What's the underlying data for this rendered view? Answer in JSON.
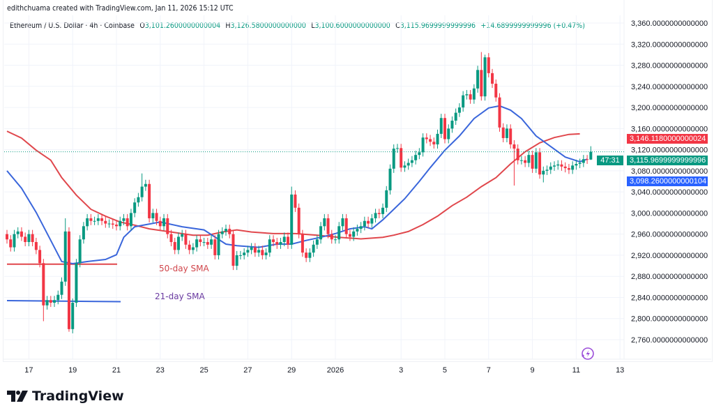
{
  "credit": "edithchuama created with TradingView.com, Jan 11, 2026 15:12 UTC",
  "legend": {
    "symbol": "Ethereum / U.S. Dollar · 4h · Coinbase",
    "o_label": "O",
    "o": "3,101.2600000000004",
    "h_label": "H",
    "h": "3,126.5800000000000",
    "l_label": "L",
    "l": "3,100.6000000000000",
    "c_label": "C",
    "c": "3,115.9699999999996",
    "change": "+14.6899999999996 (+0.47%)"
  },
  "badges": {
    "sma50": "3,146.1180000000024",
    "price": "3,115.9699999999996",
    "countdown": "47:31",
    "sma21": "3,098.2600000000104"
  },
  "annotations": {
    "sma50_label": "50-day SMA",
    "sma21_label": "21-day SMA"
  },
  "logo_text": "TradingView",
  "colors": {
    "up": "#089981",
    "down": "#f23645",
    "sma50": "#e0474c",
    "sma21": "#3a66db",
    "sma21_label": "#6a3aa0",
    "sma50_label": "#d0454b",
    "lightning": "#9c4fd9"
  },
  "icons": {
    "logo": "tradingview-logo",
    "alert": "lightning-icon"
  },
  "chart_data": {
    "type": "candlestick",
    "interval": "4h",
    "start": "2025-12-16T00:00",
    "yticks": [
      "3,360.0000000000000",
      "3,320.0000000000000",
      "3,280.0000000000000",
      "3,240.0000000000000",
      "3,200.0000000000000",
      "3,160.0000000000000",
      "3,120.0000000000000",
      "3,080.0000000000000",
      "3,040.0000000000000",
      "3,000.0000000000000",
      "2,960.0000000000000",
      "2,920.0000000000000",
      "2,880.0000000000000",
      "2,840.0000000000000",
      "2,800.0000000000000",
      "2,760.0000000000000"
    ],
    "ylim": [
      2760,
      3360
    ],
    "xticks": [
      {
        "label": "17",
        "date": "2025-12-17T00:00"
      },
      {
        "label": "19",
        "date": "2025-12-19T00:00"
      },
      {
        "label": "21",
        "date": "2025-12-21T00:00"
      },
      {
        "label": "23",
        "date": "2025-12-23T00:00"
      },
      {
        "label": "25",
        "date": "2025-12-25T00:00"
      },
      {
        "label": "27",
        "date": "2025-12-27T00:00"
      },
      {
        "label": "29",
        "date": "2025-12-29T00:00"
      },
      {
        "label": "2026",
        "date": "2025-12-31T00:00"
      },
      {
        "label": "3",
        "date": "2026-01-03T00:00"
      },
      {
        "label": "5",
        "date": "2026-01-05T00:00"
      },
      {
        "label": "7",
        "date": "2026-01-07T00:00"
      },
      {
        "label": "9",
        "date": "2026-01-09T00:00"
      },
      {
        "label": "11",
        "date": "2026-01-11T00:00"
      },
      {
        "label": "13",
        "date": "2026-01-13T00:00"
      }
    ],
    "first_open": 2960,
    "closes": [
      2950,
      2935,
      2960,
      2965,
      2955,
      2945,
      2960,
      2945,
      2930,
      2905,
      2825,
      2835,
      2830,
      2835,
      2845,
      2870,
      2965,
      2780,
      2830,
      2905,
      2950,
      2975,
      2990,
      2985,
      2985,
      2990,
      2985,
      2980,
      2980,
      2978,
      2975,
      2985,
      2990,
      2975,
      3000,
      3020,
      3030,
      3050,
      3055,
      2990,
      3000,
      2985,
      2975,
      2990,
      2960,
      2945,
      2930,
      2955,
      2960,
      2940,
      2930,
      2935,
      2950,
      2945,
      2945,
      2940,
      2950,
      2920,
      2960,
      2965,
      2970,
      2960,
      2900,
      2920,
      2920,
      2925,
      2930,
      2935,
      2925,
      2930,
      2920,
      2925,
      2950,
      2945,
      2940,
      2945,
      2955,
      2940,
      3035,
      3010,
      2960,
      2925,
      2915,
      2925,
      2940,
      2950,
      2975,
      2990,
      2960,
      2950,
      2950,
      2975,
      2990,
      2960,
      2955,
      2965,
      2970,
      2975,
      2985,
      2980,
      2990,
      3000,
      2998,
      3010,
      3043,
      3084,
      3122,
      3123,
      3086,
      3090,
      3095,
      3100,
      3110,
      3115,
      3143,
      3140,
      3135,
      3130,
      3150,
      3180,
      3140,
      3160,
      3175,
      3190,
      3200,
      3223,
      3225,
      3215,
      3236,
      3271,
      3221,
      3295,
      3265,
      3245,
      3219,
      3162,
      3142,
      3160,
      3130,
      3122,
      3100,
      3100,
      3095,
      3110,
      3084,
      3115,
      3073,
      3080,
      3082,
      3088,
      3090,
      3092,
      3088,
      3085,
      3082,
      3090,
      3093,
      3095,
      3102,
      3101,
      3115.97
    ],
    "notable_wicks": [
      {
        "bar": 10,
        "low": 2795
      },
      {
        "bar": 16,
        "high": 2990
      },
      {
        "bar": 17,
        "low": 2775
      },
      {
        "bar": 37,
        "high": 3075
      },
      {
        "bar": 78,
        "high": 3050
      },
      {
        "bar": 130,
        "high": 3305
      },
      {
        "bar": 131,
        "high": 3300
      },
      {
        "bar": 139,
        "low": 3052
      },
      {
        "bar": 147,
        "low": 3058
      },
      {
        "bar": 160,
        "open": 3101.26,
        "high": 3126.58,
        "low": 3100.6
      }
    ],
    "sma_50": [
      [
        "2025-12-16T00:00",
        3155
      ],
      [
        "2025-12-16T16:00",
        3142
      ],
      [
        "2025-12-17T08:00",
        3119
      ],
      [
        "2025-12-18T00:00",
        3100
      ],
      [
        "2025-12-18T12:00",
        3067
      ],
      [
        "2025-12-19T04:00",
        3034
      ],
      [
        "2025-12-19T20:00",
        3007
      ],
      [
        "2025-12-20T12:00",
        2994
      ],
      [
        "2025-12-21T04:00",
        2983
      ],
      [
        "2025-12-21T20:00",
        2977
      ],
      [
        "2025-12-22T12:00",
        2970
      ],
      [
        "2025-12-23T12:00",
        2964
      ],
      [
        "2025-12-24T12:00",
        2958
      ],
      [
        "2025-12-25T04:00",
        2958
      ],
      [
        "2025-12-25T20:00",
        2964
      ],
      [
        "2025-12-26T12:00",
        2968
      ],
      [
        "2025-12-27T04:00",
        2964
      ],
      [
        "2025-12-28T04:00",
        2961
      ],
      [
        "2025-12-29T04:00",
        2961
      ],
      [
        "2025-12-30T04:00",
        2958
      ],
      [
        "2025-12-31T04:00",
        2954
      ],
      [
        "2026-01-01T04:00",
        2951
      ],
      [
        "2026-01-02T04:00",
        2954
      ],
      [
        "2026-01-02T16:00",
        2958
      ],
      [
        "2026-01-03T08:00",
        2965
      ],
      [
        "2026-01-04T00:00",
        2978
      ],
      [
        "2026-01-04T16:00",
        2994
      ],
      [
        "2026-01-05T08:00",
        3014
      ],
      [
        "2026-01-06T00:00",
        3030
      ],
      [
        "2026-01-06T16:00",
        3050
      ],
      [
        "2026-01-07T08:00",
        3067
      ],
      [
        "2026-01-08T00:00",
        3093
      ],
      [
        "2026-01-08T16:00",
        3116
      ],
      [
        "2026-01-09T08:00",
        3133
      ],
      [
        "2026-01-10T00:00",
        3143
      ],
      [
        "2026-01-10T16:00",
        3149
      ],
      [
        "2026-01-11T04:00",
        3150
      ],
      [
        "2026-01-11T20:00",
        3149
      ],
      [
        "2026-01-12T08:00",
        3146
      ]
    ],
    "sma_21": [
      [
        "2025-12-16T00:00",
        3080
      ],
      [
        "2025-12-16T16:00",
        3047
      ],
      [
        "2025-12-17T08:00",
        3001
      ],
      [
        "2025-12-18T00:00",
        2948
      ],
      [
        "2025-12-18T12:00",
        2908
      ],
      [
        "2025-12-19T00:00",
        2904
      ],
      [
        "2025-12-19T16:00",
        2908
      ],
      [
        "2025-12-20T12:00",
        2912
      ],
      [
        "2025-12-21T00:00",
        2921
      ],
      [
        "2025-12-21T08:00",
        2954
      ],
      [
        "2025-12-21T20:00",
        2974
      ],
      [
        "2025-12-23T00:00",
        2983
      ],
      [
        "2025-12-24T00:00",
        2974
      ],
      [
        "2025-12-25T00:00",
        2968
      ],
      [
        "2025-12-26T00:00",
        2941
      ],
      [
        "2025-12-26T12:00",
        2938
      ],
      [
        "2025-12-27T12:00",
        2935
      ],
      [
        "2025-12-28T08:00",
        2941
      ],
      [
        "2025-12-29T00:00",
        2941
      ],
      [
        "2025-12-29T16:00",
        2948
      ],
      [
        "2025-12-30T08:00",
        2954
      ],
      [
        "2025-12-31T00:00",
        2961
      ],
      [
        "2025-12-31T16:00",
        2970
      ],
      [
        "2026-01-01T08:00",
        2974
      ],
      [
        "2026-01-01T16:00",
        2970
      ],
      [
        "2026-01-02T04:00",
        2987
      ],
      [
        "2026-01-02T16:00",
        3007
      ],
      [
        "2026-01-03T04:00",
        3027
      ],
      [
        "2026-01-03T20:00",
        3060
      ],
      [
        "2026-01-04T08:00",
        3086
      ],
      [
        "2026-01-05T00:00",
        3119
      ],
      [
        "2026-01-05T16:00",
        3146
      ],
      [
        "2026-01-06T08:00",
        3179
      ],
      [
        "2026-01-07T00:00",
        3199
      ],
      [
        "2026-01-07T12:00",
        3203
      ],
      [
        "2026-01-08T00:00",
        3195
      ],
      [
        "2026-01-08T12:00",
        3179
      ],
      [
        "2026-01-09T04:00",
        3146
      ],
      [
        "2026-01-09T20:00",
        3126
      ],
      [
        "2026-01-10T12:00",
        3106
      ],
      [
        "2026-01-11T04:00",
        3097
      ],
      [
        "2026-01-11T12:00",
        3102
      ]
    ],
    "legend_lines": {
      "sma50_price": 2903,
      "sma21_price": 2834
    },
    "current_price": 3115.97,
    "grid": true
  }
}
